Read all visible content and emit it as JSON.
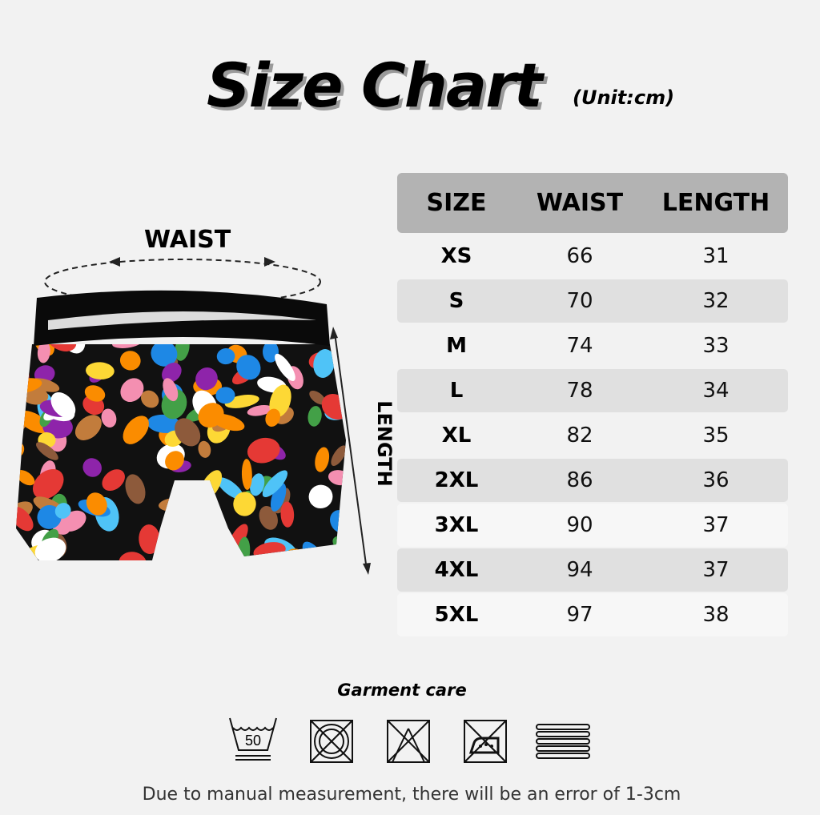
{
  "header": {
    "title": "Size Chart",
    "unit": "(Unit:cm)"
  },
  "diagram": {
    "waist_label": "WAIST",
    "length_label": "LENGTH"
  },
  "table": {
    "columns": [
      "SIZE",
      "WAIST",
      "LENGTH"
    ],
    "rows": [
      [
        "XS",
        "66",
        "31"
      ],
      [
        "S",
        "70",
        "32"
      ],
      [
        "M",
        "74",
        "33"
      ],
      [
        "L",
        "78",
        "34"
      ],
      [
        "XL",
        "82",
        "35"
      ],
      [
        "2XL",
        "86",
        "36"
      ],
      [
        "3XL",
        "90",
        "37"
      ],
      [
        "4XL",
        "94",
        "37"
      ],
      [
        "5XL",
        "97",
        "38"
      ]
    ]
  },
  "care": {
    "title": "Garment care",
    "icons": [
      "wash-50-icon",
      "do-not-tumble-dry-icon",
      "do-not-bleach-icon",
      "do-not-iron-icon",
      "dry-flat-icon"
    ],
    "wash_temp": "50"
  },
  "note": "Due to manual measurement, there will be an error of 1-3cm",
  "colors": {
    "background": "#f2f2f2",
    "header_row": "#b3b3b3",
    "alt_row": "#e0e0e0"
  }
}
